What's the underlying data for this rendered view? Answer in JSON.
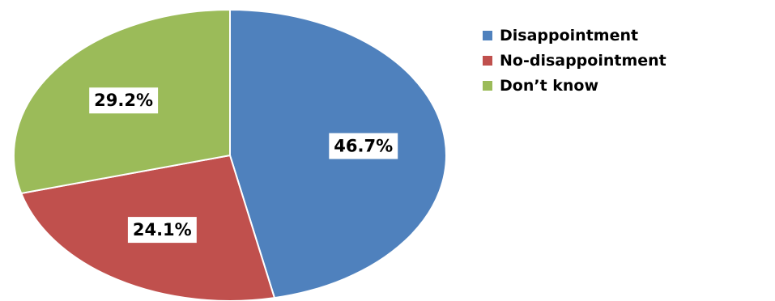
{
  "chart_data": {
    "type": "pie",
    "categories": [
      "Disappointment",
      "No-disappointment",
      "Don’t know"
    ],
    "values": [
      46.7,
      24.1,
      29.2
    ],
    "data_labels": [
      "46.7%",
      "24.1%",
      "29.2%"
    ],
    "colors": [
      "#4F81BD",
      "#C0504D",
      "#9BBB59"
    ],
    "start_angle_deg": 0,
    "direction": "clockwise",
    "legend_position": "top-right"
  }
}
